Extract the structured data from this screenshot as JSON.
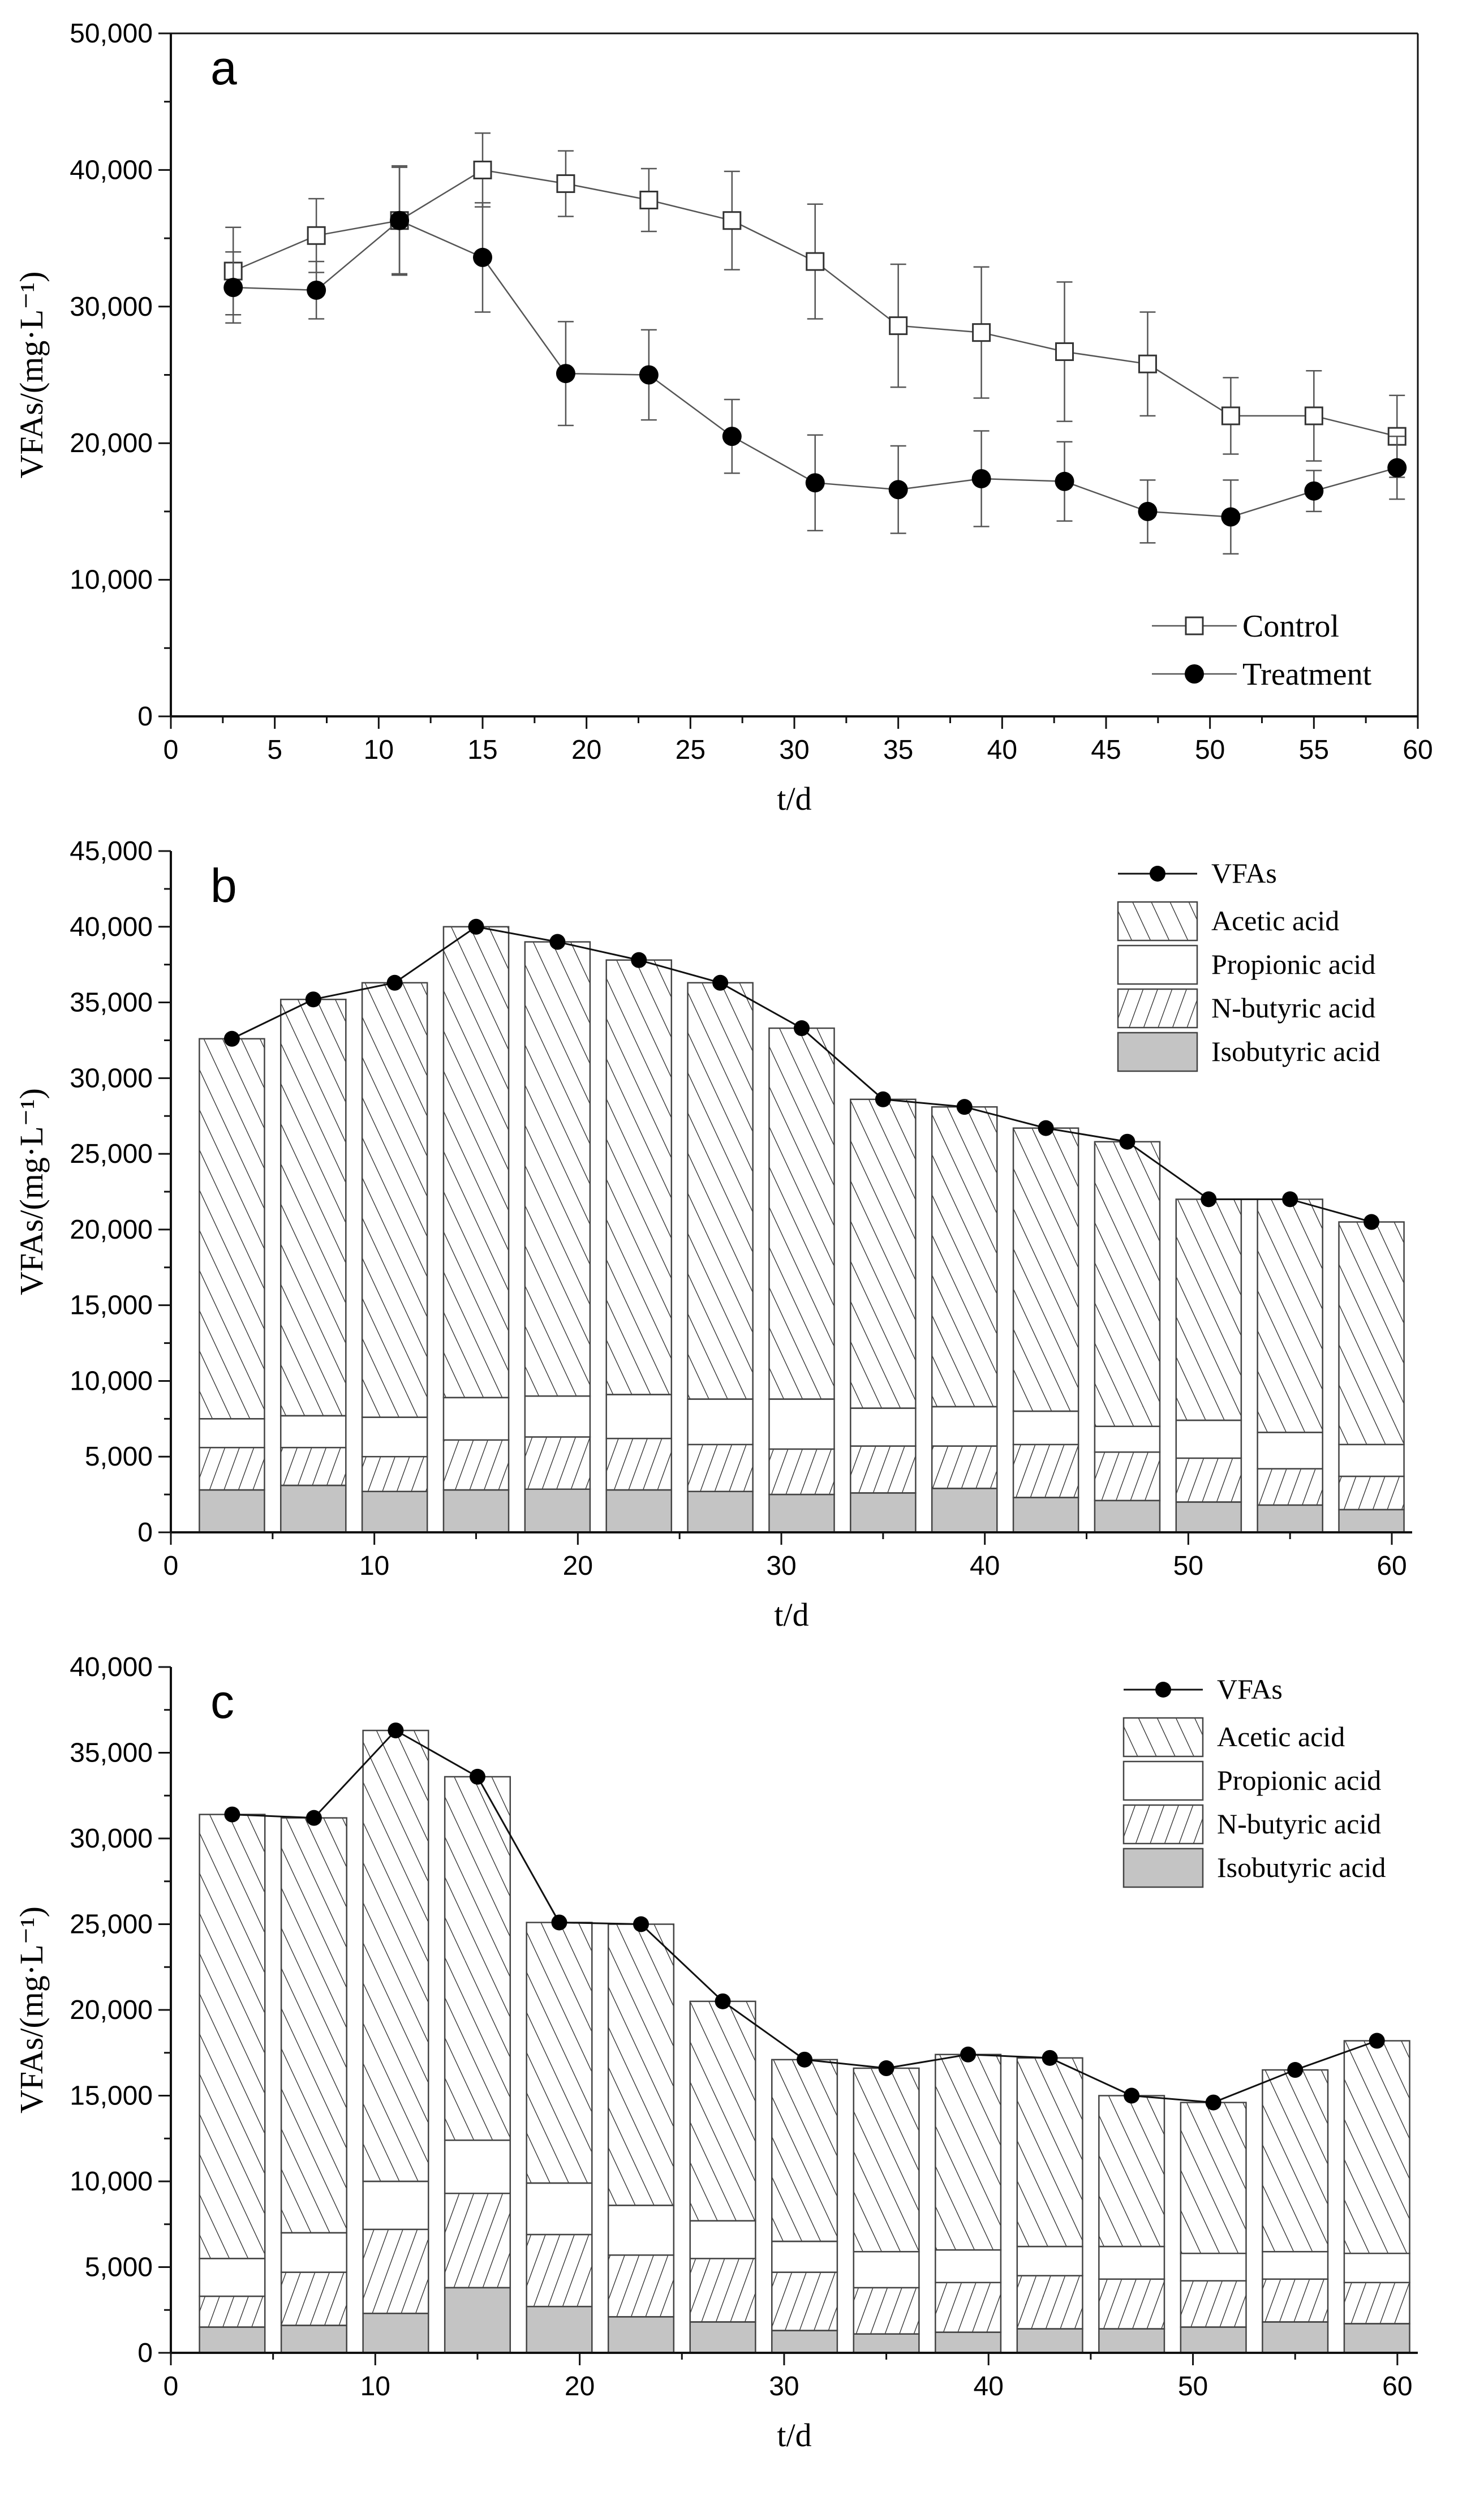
{
  "chart_data": [
    {
      "type": "line",
      "panel_label": "a",
      "xlabel": "t/d",
      "ylabel": "VFAs/(mg·L⁻¹)",
      "xlim": [
        0,
        60
      ],
      "ylim": [
        0,
        50000
      ],
      "xticks": [
        0,
        5,
        10,
        15,
        20,
        25,
        30,
        35,
        40,
        45,
        50,
        55,
        60
      ],
      "yticks": [
        0,
        10000,
        20000,
        30000,
        40000,
        50000
      ],
      "ytick_labels": [
        "0",
        "10,000",
        "20,000",
        "30,000",
        "40,000",
        "50,000"
      ],
      "grid": false,
      "legend_position": "bottom-right",
      "x": [
        3,
        7,
        11,
        15,
        19,
        23,
        27,
        31,
        35,
        39,
        43,
        47,
        51,
        55,
        59
      ],
      "series": [
        {
          "name": "Control",
          "marker": "open-square",
          "values": [
            32600,
            35200,
            36300,
            40000,
            39000,
            37800,
            36300,
            33300,
            28600,
            28100,
            26700,
            25800,
            22000,
            22000,
            20500
          ],
          "errors": [
            3200,
            2700,
            4000,
            2700,
            2400,
            2300,
            3600,
            4200,
            4500,
            4800,
            5100,
            3800,
            2800,
            3300,
            3000
          ]
        },
        {
          "name": "Treatment",
          "marker": "filled-circle",
          "values": [
            31400,
            31200,
            36300,
            33600,
            25100,
            25000,
            20500,
            17100,
            16600,
            17400,
            17200,
            15000,
            14600,
            16500,
            18200
          ],
          "errors": [
            2600,
            2100,
            3900,
            4000,
            3800,
            3300,
            2700,
            3500,
            3200,
            3500,
            2900,
            2300,
            2700,
            1500,
            2300
          ]
        }
      ]
    },
    {
      "type": "bar",
      "stacked": true,
      "panel_label": "b",
      "xlabel": "t/d",
      "ylabel": "VFAs/(mg·L⁻¹)",
      "xlim": [
        0,
        61
      ],
      "ylim": [
        0,
        45000
      ],
      "xticks": [
        0,
        10,
        20,
        30,
        40,
        50,
        60
      ],
      "yticks": [
        0,
        5000,
        10000,
        15000,
        20000,
        25000,
        30000,
        35000,
        40000,
        45000
      ],
      "ytick_labels": [
        "0",
        "5,000",
        "10,000",
        "15,000",
        "20,000",
        "25,000",
        "30,000",
        "35,000",
        "40,000",
        "45,000"
      ],
      "grid": false,
      "legend_position": "top-right",
      "x": [
        3,
        7,
        11,
        15,
        19,
        23,
        27,
        31,
        35,
        39,
        43,
        47,
        51,
        55,
        59
      ],
      "line_series": {
        "name": "VFAs",
        "values": [
          32600,
          35200,
          36300,
          40000,
          39000,
          37800,
          36300,
          33300,
          28600,
          28100,
          26700,
          25800,
          22000,
          22000,
          20500
        ]
      },
      "series": [
        {
          "name": "Isobutyric acid",
          "values": [
            2800,
            3100,
            2700,
            2800,
            2850,
            2800,
            2700,
            2500,
            2600,
            2900,
            2300,
            2100,
            2000,
            1800,
            1500
          ]
        },
        {
          "name": "N-butyric acid",
          "values": [
            2800,
            2500,
            2300,
            3300,
            3450,
            3400,
            3100,
            3000,
            3100,
            2800,
            3500,
            3200,
            2900,
            2400,
            2200
          ]
        },
        {
          "name": "Propionic acid",
          "values": [
            1900,
            2100,
            2600,
            2800,
            2700,
            2900,
            3000,
            3300,
            2500,
            2600,
            2200,
            1700,
            2500,
            2400,
            2100
          ]
        },
        {
          "name": "Acetic acid",
          "values": [
            25100,
            27500,
            28700,
            31100,
            30000,
            28700,
            27500,
            24500,
            20400,
            19800,
            18700,
            18800,
            14600,
            15400,
            14700
          ]
        }
      ]
    },
    {
      "type": "bar",
      "stacked": true,
      "panel_label": "c",
      "xlabel": "t/d",
      "ylabel": "VFAs/(mg·L⁻¹)",
      "xlim": [
        0,
        61
      ],
      "ylim": [
        0,
        40000
      ],
      "xticks": [
        0,
        10,
        20,
        30,
        40,
        50,
        60
      ],
      "yticks": [
        0,
        5000,
        10000,
        15000,
        20000,
        25000,
        30000,
        35000,
        40000
      ],
      "ytick_labels": [
        "0",
        "5,000",
        "10,000",
        "15,000",
        "20,000",
        "25,000",
        "30,000",
        "35,000",
        "40,000"
      ],
      "grid": false,
      "legend_position": "top-right",
      "x": [
        3,
        7,
        11,
        15,
        19,
        23,
        27,
        31,
        35,
        39,
        43,
        47,
        51,
        55,
        59
      ],
      "line_series": {
        "name": "VFAs",
        "values": [
          31400,
          31200,
          36300,
          33600,
          25100,
          25000,
          20500,
          17100,
          16600,
          17400,
          17200,
          15000,
          14600,
          16500,
          18200
        ]
      },
      "series": [
        {
          "name": "Isobutyric acid",
          "values": [
            1500,
            1600,
            2300,
            3800,
            2700,
            2100,
            1800,
            1300,
            1100,
            1200,
            1400,
            1400,
            1500,
            1800,
            1700
          ]
        },
        {
          "name": "N-butyric acid",
          "values": [
            1800,
            3100,
            4900,
            5500,
            4200,
            3600,
            3700,
            3400,
            2700,
            2900,
            3100,
            2900,
            2700,
            2500,
            2400
          ]
        },
        {
          "name": "Propionic acid",
          "values": [
            2200,
            2300,
            2800,
            3100,
            3000,
            2900,
            2200,
            1800,
            2100,
            1900,
            1700,
            1900,
            1600,
            1600,
            1700
          ]
        },
        {
          "name": "Acetic acid",
          "values": [
            25900,
            24200,
            26300,
            21200,
            15200,
            16400,
            12800,
            10600,
            10700,
            11400,
            11000,
            8800,
            8800,
            10600,
            12400
          ]
        }
      ]
    }
  ]
}
